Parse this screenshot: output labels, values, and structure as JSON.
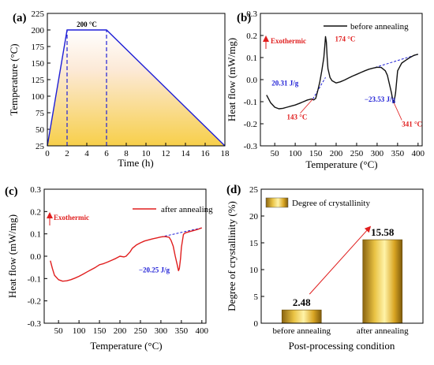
{
  "chart_data": [
    {
      "panel": "(a)",
      "type": "line",
      "xlabel": "Time (h)",
      "ylabel": "Temperature (°C)",
      "xlim": [
        0,
        18
      ],
      "ylim": [
        25,
        225
      ],
      "xticks": [
        0,
        2,
        4,
        6,
        8,
        10,
        12,
        14,
        16,
        18
      ],
      "yticks": [
        25,
        50,
        75,
        100,
        125,
        150,
        175,
        200,
        225
      ],
      "series": [
        {
          "x": [
            0,
            2,
            6,
            18
          ],
          "y": [
            25,
            200,
            200,
            25
          ],
          "color": "#1f1fd6"
        }
      ],
      "dashed_markers_x": [
        2,
        6
      ],
      "fill": "gradient",
      "annotations": [
        {
          "text": "200 °C",
          "x": 4,
          "y": 200
        }
      ]
    },
    {
      "panel": "(b)",
      "type": "line",
      "xlabel": "Temperature (°C)",
      "ylabel": "Heat flow (mW/mg)",
      "xlim": [
        15,
        410
      ],
      "ylim": [
        -0.3,
        0.3
      ],
      "xticks": [
        50,
        100,
        150,
        200,
        250,
        300,
        350,
        400
      ],
      "yticks": [
        -0.3,
        -0.2,
        -0.1,
        0.0,
        0.1,
        0.2,
        0.3
      ],
      "legend": "before annealing",
      "exothermic_label": "Exothermic",
      "series": [
        {
          "name": "before annealing",
          "color": "#111111",
          "x": [
            30,
            40,
            50,
            60,
            70,
            80,
            90,
            100,
            110,
            120,
            130,
            140,
            145,
            150,
            155,
            160,
            165,
            170,
            173,
            174,
            176,
            178,
            180,
            185,
            190,
            200,
            210,
            220,
            230,
            240,
            250,
            260,
            270,
            280,
            290,
            300,
            310,
            320,
            325,
            330,
            335,
            338,
            341,
            345,
            350,
            360,
            370,
            380,
            390,
            400
          ],
          "y": [
            -0.07,
            -0.105,
            -0.125,
            -0.132,
            -0.13,
            -0.125,
            -0.12,
            -0.115,
            -0.108,
            -0.1,
            -0.092,
            -0.088,
            -0.092,
            -0.085,
            -0.05,
            -0.01,
            0.04,
            0.1,
            0.17,
            0.195,
            0.17,
            0.1,
            0.05,
            0.01,
            -0.005,
            -0.015,
            -0.01,
            -0.002,
            0.007,
            0.016,
            0.024,
            0.032,
            0.04,
            0.047,
            0.052,
            0.056,
            0.055,
            0.04,
            0.02,
            -0.02,
            -0.06,
            -0.09,
            -0.105,
            -0.06,
            0.04,
            0.075,
            0.088,
            0.1,
            0.11,
            0.115
          ]
        }
      ],
      "baselines": [
        {
          "x": [
            143,
            174
          ],
          "y": [
            -0.088,
            0.01
          ]
        },
        {
          "x": [
            295,
            400
          ],
          "y": [
            0.055,
            0.115
          ]
        }
      ],
      "annotations": [
        {
          "text": "174 °C",
          "x": 174,
          "y": 0.195
        },
        {
          "text": "143 °C",
          "x": 143,
          "y": -0.088
        },
        {
          "text": "341 °C",
          "x": 341,
          "y": -0.105
        },
        {
          "text": "20.31 J/g",
          "x": 160,
          "y": -0.02
        },
        {
          "text": "−23.53 J/g",
          "x": 330,
          "y": 0.0
        }
      ]
    },
    {
      "panel": "(c)",
      "type": "line",
      "xlabel": "Temperature (°C)",
      "ylabel": "Heat flow (mW/mg)",
      "xlim": [
        15,
        410
      ],
      "ylim": [
        -0.3,
        0.3
      ],
      "xticks": [
        50,
        100,
        150,
        200,
        250,
        300,
        350,
        400
      ],
      "yticks": [
        -0.3,
        -0.2,
        -0.1,
        0.0,
        0.1,
        0.2,
        0.3
      ],
      "legend": "after annealing",
      "exothermic_label": "Exothermic",
      "series": [
        {
          "name": "after annealing",
          "color": "#e01e1e",
          "x": [
            30,
            35,
            40,
            50,
            60,
            70,
            80,
            90,
            100,
            110,
            120,
            130,
            140,
            150,
            160,
            170,
            180,
            190,
            200,
            210,
            215,
            220,
            225,
            230,
            240,
            250,
            260,
            270,
            280,
            290,
            300,
            310,
            320,
            325,
            330,
            335,
            340,
            343,
            345,
            348,
            350,
            355,
            360,
            370,
            380,
            390,
            400
          ],
          "y": [
            -0.02,
            -0.055,
            -0.085,
            -0.105,
            -0.112,
            -0.11,
            -0.105,
            -0.098,
            -0.09,
            -0.08,
            -0.07,
            -0.06,
            -0.05,
            -0.038,
            -0.033,
            -0.026,
            -0.018,
            -0.01,
            0.0,
            -0.003,
            0.0,
            0.01,
            0.02,
            0.035,
            0.05,
            0.06,
            0.068,
            0.073,
            0.078,
            0.082,
            0.086,
            0.088,
            0.085,
            0.07,
            0.045,
            0.0,
            -0.04,
            -0.065,
            -0.055,
            -0.01,
            0.04,
            0.098,
            0.105,
            0.11,
            0.115,
            0.12,
            0.127
          ]
        }
      ],
      "baselines": [
        {
          "x": [
            300,
            400
          ],
          "y": [
            0.086,
            0.127
          ]
        }
      ],
      "annotations": [
        {
          "text": "−20.25 J/g",
          "x": 330,
          "y": 0.02
        }
      ]
    },
    {
      "panel": "(d)",
      "type": "bar",
      "xlabel": "Post-processing condition",
      "ylabel": "Degree of crystallinity (%)",
      "ylim": [
        0,
        25
      ],
      "yticks": [
        0,
        5,
        10,
        15,
        20,
        25
      ],
      "categories": [
        "before annealing",
        "after annealing"
      ],
      "values": [
        2.48,
        15.58
      ],
      "value_labels": [
        "2.48",
        "15.58"
      ],
      "legend": "Degree of crystallinity",
      "bar_color": "#d4a017"
    }
  ]
}
